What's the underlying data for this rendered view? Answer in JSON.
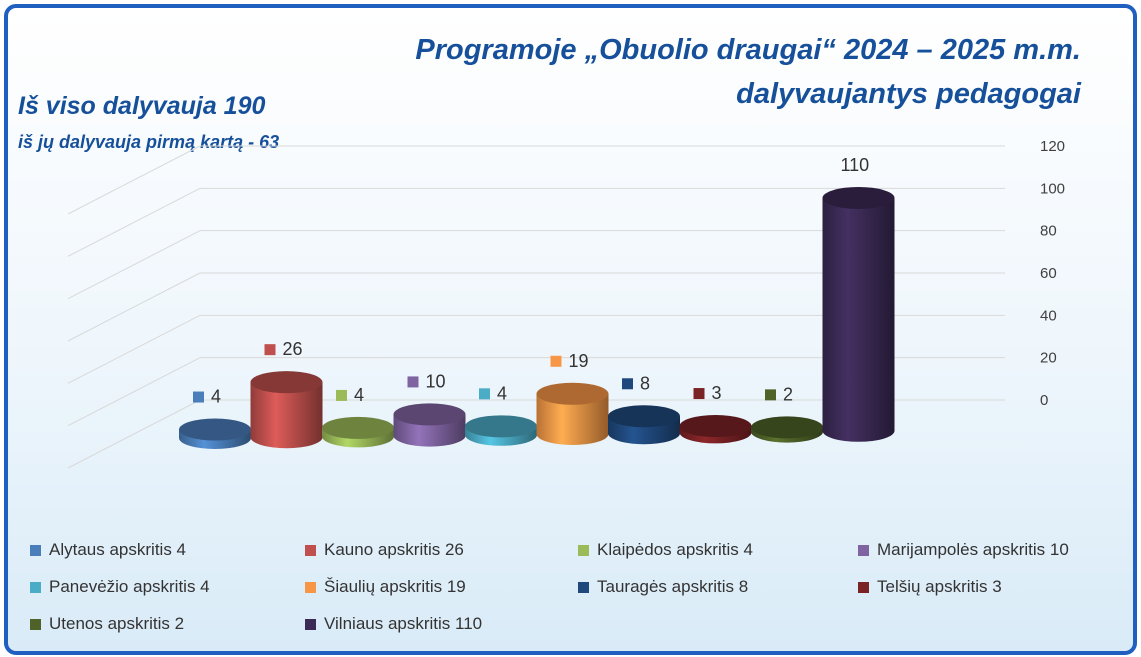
{
  "title": {
    "line1": "Programoje „Obuolio draugai“  2024 – 2025 m.m.",
    "line2": "dalyvaujantys pedagogai"
  },
  "summary": {
    "total": "Iš viso dalyvauja 190",
    "first_time": "iš jų dalyvauja pirmą kartą - 63"
  },
  "chart_data": {
    "type": "bar",
    "style": "3d-cylinder",
    "categories": [
      "Alytaus apskritis 4",
      "Kauno apskritis 26",
      "Klaipėdos apskritis  4",
      "Marijampolės apskritis  10",
      "Panevėžio apskritis  4",
      "Šiaulių apskritis  19",
      "Tauragės apskritis  8",
      "Telšių apskritis  3",
      "Utenos apskritis 2",
      "Vilniaus apskritis 110"
    ],
    "values": [
      4,
      26,
      4,
      10,
      4,
      19,
      8,
      3,
      2,
      110
    ],
    "colors": [
      "#4a7ebb",
      "#c0504d",
      "#9bbb59",
      "#8064a2",
      "#4bacc6",
      "#f79646",
      "#1f497d",
      "#7b2225",
      "#4f6228",
      "#3b2a55"
    ],
    "ylim": [
      0,
      120
    ],
    "yticks": [
      "0",
      "20",
      "40",
      "60",
      "80",
      "100",
      "120"
    ],
    "ylabel": "",
    "xlabel": "",
    "grid": true,
    "legend": "bottom"
  }
}
